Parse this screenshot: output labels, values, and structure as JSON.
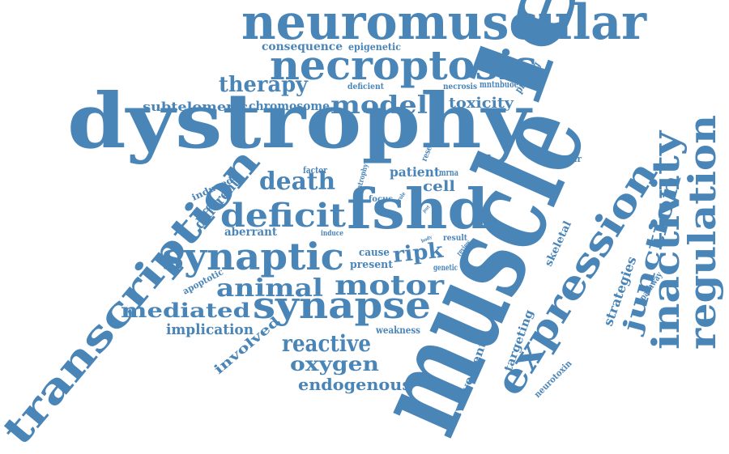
{
  "colors": {
    "word": "#4a85b8",
    "background": "#ffffff"
  },
  "words": [
    "dystrophy",
    "muscle",
    "le",
    "fshd",
    "neuromuscular",
    "necroptosis",
    "synaptic",
    "transcription",
    "expression",
    "inactivity",
    "regulation",
    "synapse",
    "deficit",
    "motor",
    "junction",
    "animal",
    "model",
    "death",
    "therapy",
    "reactive",
    "oxygen",
    "mediated",
    "ripk",
    "endogenous",
    "implication",
    "toxicity",
    "strategies",
    "subtelomeric",
    "chromosome",
    "consequence",
    "epigenetic",
    "different",
    "cell",
    "patient",
    "aberrant",
    "involved",
    "present",
    "cause",
    "skeletal",
    "targeting",
    "involvement",
    "weakness",
    "apoptotic",
    "induced",
    "factor",
    "focus",
    "neurotoxin",
    "pruning",
    "muscular",
    "pathway",
    "deficient",
    "necrosis",
    "mntnbuoe",
    "research",
    "atrophy",
    "mrna",
    "result",
    "genetic",
    "induce",
    "review",
    "vitro",
    "role",
    "body",
    "port"
  ]
}
